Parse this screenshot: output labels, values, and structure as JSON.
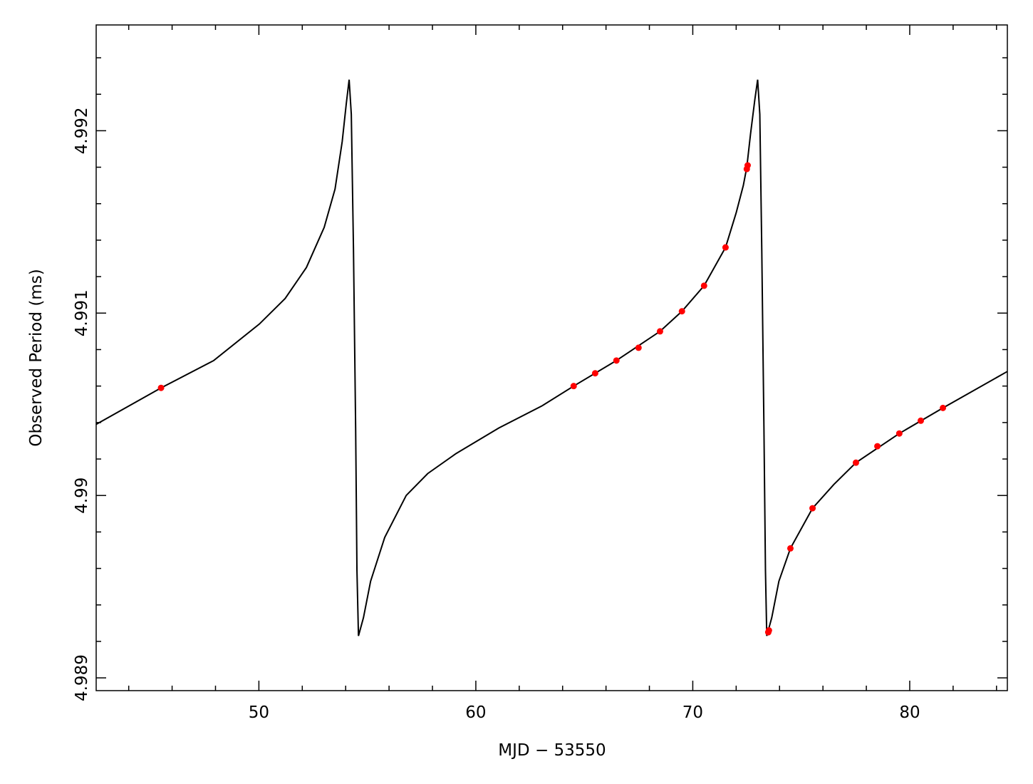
{
  "chart_data": {
    "type": "line",
    "xlabel": "MJD − 53550",
    "ylabel": "Observed Period (ms)",
    "xlim": [
      42.5,
      84.5
    ],
    "ylim": [
      4.98893,
      4.99258
    ],
    "xticks": [
      50,
      60,
      70,
      80
    ],
    "yticks": [
      4.989,
      4.99,
      4.991,
      4.992
    ],
    "xminorticks": [
      44,
      46,
      48,
      52,
      54,
      56,
      58,
      62,
      64,
      66,
      68,
      72,
      74,
      76,
      78,
      82,
      84
    ],
    "yminorticks": [
      4.9892,
      4.9894,
      4.9896,
      4.9898,
      4.9902,
      4.9904,
      4.9906,
      4.9908,
      4.9912,
      4.9914,
      4.9916,
      4.9918,
      4.9922,
      4.9924
    ],
    "series": [
      {
        "type": "line",
        "color": "#000000",
        "x": [
          42.5,
          45.49,
          47.92,
          50.02,
          51.21,
          52.19,
          53.01,
          53.51,
          53.84,
          54.03,
          54.16,
          54.26,
          54.36,
          54.46,
          54.52,
          54.59,
          54.82,
          55.15,
          55.8,
          56.79,
          57.78,
          59.09,
          61.06,
          63.03,
          64.51,
          66.48,
          68.49,
          69.5,
          70.52,
          71.51,
          72.0,
          72.33,
          72.49,
          72.66,
          72.86,
          72.99,
          73.09,
          73.18,
          73.28,
          73.35,
          73.41,
          73.64,
          73.97,
          74.5,
          75.52,
          76.5,
          77.52,
          79.52,
          81.53,
          84.5
        ],
        "values": [
          4.99039,
          4.99059,
          4.99074,
          4.99094,
          4.99108,
          4.99125,
          4.99147,
          4.99168,
          4.99194,
          4.99215,
          4.99228,
          4.99209,
          4.99135,
          4.99037,
          4.98959,
          4.98923,
          4.98933,
          4.98953,
          4.98977,
          4.99,
          4.99012,
          4.99023,
          4.99037,
          4.99049,
          4.9906,
          4.99074,
          4.9909,
          4.99101,
          4.99115,
          4.99136,
          4.99155,
          4.9917,
          4.9918,
          4.99198,
          4.99217,
          4.99228,
          4.99209,
          4.99135,
          4.99037,
          4.98959,
          4.98923,
          4.98933,
          4.98953,
          4.98971,
          4.98993,
          4.99006,
          4.99018,
          4.99034,
          4.99048,
          4.99068
        ]
      },
      {
        "type": "scatter",
        "color": "#ff0000",
        "x": [
          45.49,
          64.51,
          65.5,
          66.48,
          67.5,
          68.49,
          69.5,
          70.52,
          71.51,
          72.49,
          72.53,
          73.48,
          73.51,
          74.5,
          75.52,
          77.52,
          78.51,
          79.52,
          80.51,
          81.53
        ],
        "values": [
          4.99059,
          4.9906,
          4.99067,
          4.99074,
          4.99081,
          4.9909,
          4.99101,
          4.99115,
          4.99136,
          4.99179,
          4.99181,
          4.98925,
          4.98926,
          4.98971,
          4.98993,
          4.99018,
          4.99027,
          4.99034,
          4.99041,
          4.99048
        ]
      }
    ]
  }
}
